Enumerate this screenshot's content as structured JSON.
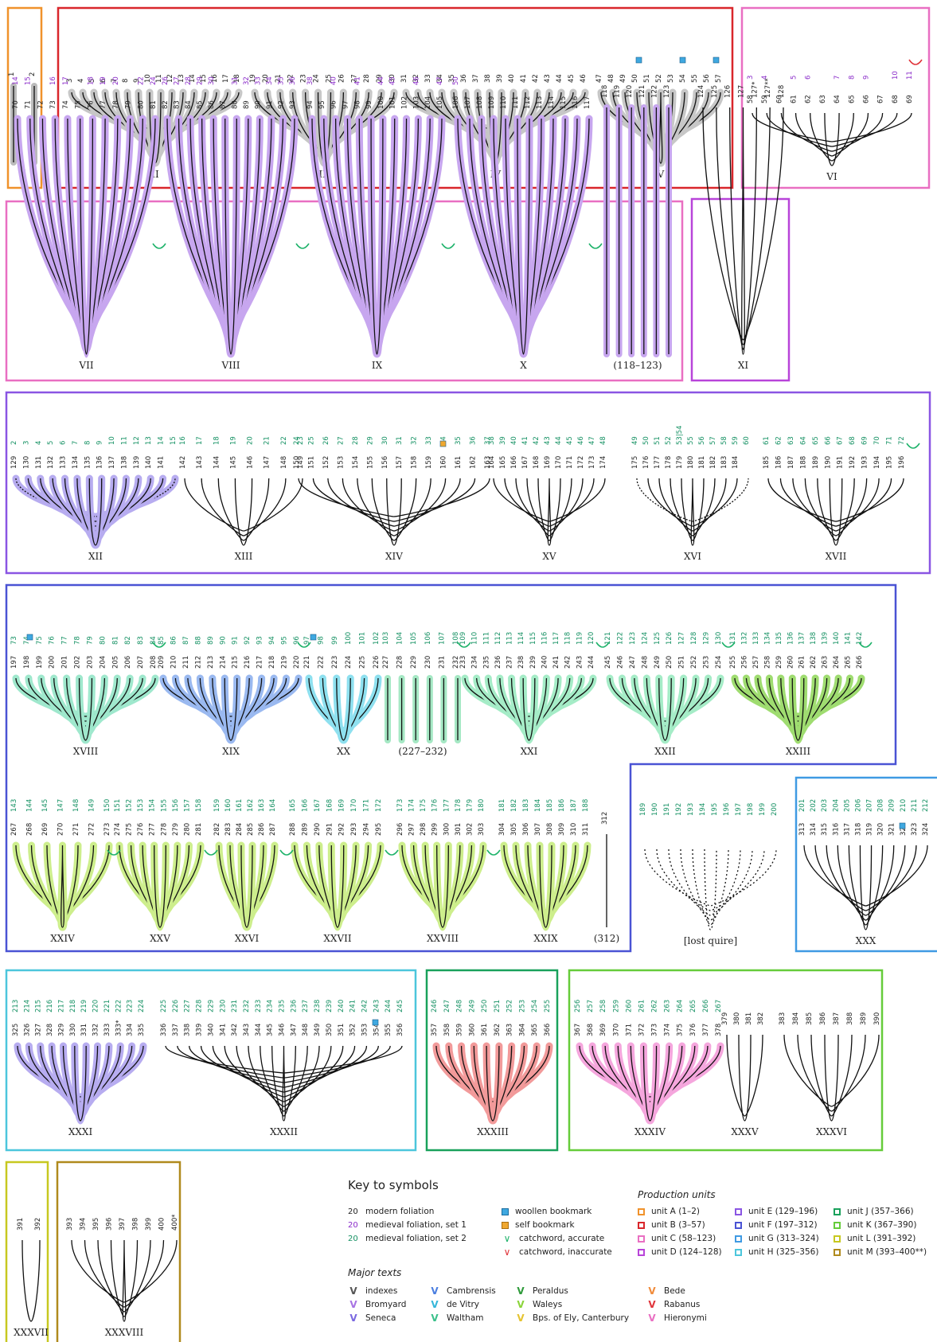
{
  "quires": [
    {
      "label": "I",
      "leaves": [
        "1",
        "2"
      ],
      "box": "A"
    },
    {
      "label": "II",
      "leaves": [
        "3",
        "4",
        "5",
        "6",
        "7",
        "8",
        "9",
        "10",
        "11",
        "12",
        "13",
        "14",
        "15",
        "16",
        "17",
        "18"
      ],
      "box": "B"
    },
    {
      "label": "III",
      "leaves": [
        "19",
        "20",
        "21",
        "22",
        "23",
        "24",
        "25",
        "26",
        "27",
        "28",
        "29",
        "30"
      ],
      "box": "B"
    },
    {
      "label": "IV",
      "leaves": [
        "31",
        "32",
        "33",
        "34",
        "35",
        "36",
        "37",
        "38",
        "39",
        "40",
        "41",
        "42",
        "43",
        "44",
        "45",
        "46"
      ],
      "box": "B"
    },
    {
      "label": "V",
      "leaves": [
        "47",
        "48",
        "49",
        "50",
        "51",
        "52",
        "53",
        "54",
        "55",
        "56",
        "57"
      ],
      "box": "B"
    },
    {
      "label": "VI",
      "leaves": [
        "58",
        "59",
        "60",
        "61",
        "62",
        "63",
        "64",
        "65",
        "66",
        "67",
        "68",
        "69"
      ],
      "medieval1": [
        "3",
        "4",
        "5",
        "6",
        "7",
        "8",
        "9",
        "10",
        "11"
      ],
      "box": "C"
    },
    {
      "label": "VII",
      "leaves": [
        "70",
        "71",
        "72",
        "73",
        "74",
        "75",
        "76",
        "77",
        "78",
        "79",
        "80",
        "81"
      ],
      "medieval1": [
        "14",
        "15",
        "16",
        "17",
        "18",
        "19",
        "20",
        "22",
        "24"
      ],
      "box": "C"
    },
    {
      "label": "VIII",
      "leaves": [
        "82",
        "83",
        "84",
        "85",
        "86",
        "87",
        "88",
        "89",
        "90",
        "91",
        "92",
        "93"
      ],
      "medieval1": [
        "26",
        "27",
        "28",
        "29",
        "30",
        "31",
        "32",
        "33",
        "34",
        "35",
        "36"
      ],
      "box": "C"
    },
    {
      "label": "IX",
      "leaves": [
        "94",
        "95",
        "96",
        "97",
        "98",
        "99",
        "100",
        "101",
        "102",
        "103",
        "104",
        "105"
      ],
      "medieval1": [
        "38",
        "40",
        "41",
        "44",
        "45",
        "46",
        "47"
      ],
      "box": "C"
    },
    {
      "label": "X",
      "leaves": [
        "106",
        "107",
        "108",
        "109",
        "110",
        "111",
        "112",
        "113",
        "114",
        "115",
        "116",
        "117"
      ],
      "medieval1": [
        "50"
      ],
      "box": "C"
    },
    {
      "label": "(118–123)",
      "leaves": [
        "118",
        "119",
        "120",
        "121",
        "122",
        "123"
      ],
      "box": "C"
    },
    {
      "label": "XI",
      "leaves": [
        "124",
        "125",
        "126",
        "127",
        "127*",
        "127**",
        "128"
      ],
      "box": "D"
    },
    {
      "label": "XII",
      "leaves": [
        "129",
        "130",
        "131",
        "132",
        "133",
        "134",
        "135",
        "136",
        "137",
        "138",
        "139",
        "140",
        "141"
      ],
      "medieval2": [
        "2",
        "3",
        "4",
        "5",
        "6",
        "7",
        "8",
        "9",
        "10",
        "11",
        "12",
        "13",
        "14",
        "15"
      ],
      "box": "E"
    },
    {
      "label": "XIII",
      "leaves": [
        "142",
        "143",
        "144",
        "145",
        "146",
        "147",
        "148",
        "149"
      ],
      "medieval2": [
        "16",
        "17",
        "18",
        "19",
        "20",
        "21",
        "22",
        "23"
      ],
      "box": "E"
    },
    {
      "label": "XIV",
      "leaves": [
        "150",
        "151",
        "152",
        "153",
        "154",
        "155",
        "156",
        "157",
        "158",
        "159",
        "160",
        "161",
        "162",
        "163"
      ],
      "medieval2": [
        "24",
        "25",
        "26",
        "27",
        "28",
        "29",
        "30",
        "31",
        "32",
        "33",
        "34",
        "35",
        "36",
        "37"
      ],
      "box": "E"
    },
    {
      "label": "XV",
      "leaves": [
        "164",
        "165",
        "166",
        "167",
        "168",
        "169",
        "170",
        "171",
        "172",
        "173",
        "174"
      ],
      "medieval2": [
        "38",
        "39",
        "40",
        "41",
        "42",
        "43",
        "44",
        "45",
        "46",
        "47",
        "48"
      ],
      "box": "E"
    },
    {
      "label": "XVI",
      "leaves": [
        "175",
        "176",
        "177",
        "178",
        "179",
        "180",
        "181",
        "182",
        "183",
        "184"
      ],
      "medieval2": [
        "49",
        "50",
        "51",
        "52",
        "53|54",
        "55",
        "56",
        "57",
        "58",
        "59",
        "60"
      ],
      "box": "E"
    },
    {
      "label": "XVII",
      "leaves": [
        "185",
        "186",
        "187",
        "188",
        "189",
        "190",
        "191",
        "192",
        "193",
        "194",
        "195",
        "196"
      ],
      "medieval2": [
        "61",
        "62",
        "63",
        "64",
        "65",
        "66",
        "67",
        "68",
        "69",
        "70",
        "71",
        "72"
      ],
      "box": "E"
    },
    {
      "label": "XVIII",
      "leaves": [
        "197",
        "198",
        "199",
        "200",
        "201",
        "202",
        "203",
        "204",
        "205",
        "206",
        "207",
        "208"
      ],
      "medieval2": [
        "73",
        "74",
        "75",
        "76",
        "77",
        "78",
        "79",
        "80",
        "81",
        "82",
        "83",
        "84"
      ],
      "box": "F"
    },
    {
      "label": "XIX",
      "leaves": [
        "209",
        "210",
        "211",
        "212",
        "213",
        "214",
        "215",
        "216",
        "217",
        "218",
        "219",
        "220"
      ],
      "medieval2": [
        "85",
        "86",
        "87",
        "88",
        "89",
        "90",
        "91",
        "92",
        "93",
        "94",
        "95",
        "96"
      ],
      "box": "F"
    },
    {
      "label": "XX",
      "leaves": [
        "221",
        "222",
        "223",
        "224",
        "225",
        "226"
      ],
      "medieval2": [
        "97",
        "98",
        "99",
        "100",
        "101",
        "102"
      ],
      "box": "F"
    },
    {
      "label": "(227–232)",
      "leaves": [
        "227",
        "228",
        "229",
        "230",
        "231",
        "232"
      ],
      "medieval2": [
        "103",
        "104",
        "105",
        "106",
        "107",
        "108"
      ],
      "box": "F"
    },
    {
      "label": "XXI",
      "leaves": [
        "233",
        "234",
        "235",
        "236",
        "237",
        "238",
        "239",
        "240",
        "241",
        "242",
        "243",
        "244"
      ],
      "medieval2": [
        "109",
        "110",
        "111",
        "112",
        "113",
        "114",
        "115",
        "116",
        "117",
        "118",
        "119",
        "120"
      ],
      "box": "F"
    },
    {
      "label": "XXII",
      "leaves": [
        "245",
        "246",
        "247",
        "248",
        "249",
        "250",
        "251",
        "252",
        "253",
        "254"
      ],
      "medieval2": [
        "121",
        "122",
        "123",
        "124",
        "125",
        "126",
        "127",
        "128",
        "129",
        "130"
      ],
      "box": "F"
    },
    {
      "label": "XXIII",
      "leaves": [
        "255",
        "256",
        "257",
        "258",
        "259",
        "260",
        "261",
        "262",
        "263",
        "264",
        "265",
        "266"
      ],
      "medieval2": [
        "131",
        "132",
        "133",
        "134",
        "135",
        "136",
        "137",
        "138",
        "139",
        "140",
        "141",
        "142"
      ],
      "box": "F"
    },
    {
      "label": "XXIV",
      "leaves": [
        "267",
        "268",
        "269",
        "270",
        "271",
        "272",
        "273"
      ],
      "medieval2": [
        "143",
        "144",
        "145",
        "147",
        "148",
        "149",
        "150"
      ],
      "box": "F"
    },
    {
      "label": "XXV",
      "leaves": [
        "274",
        "275",
        "276",
        "277",
        "278",
        "279",
        "280",
        "281"
      ],
      "medieval2": [
        "151",
        "152",
        "153",
        "154",
        "155",
        "156",
        "157",
        "158"
      ],
      "box": "F"
    },
    {
      "label": "XXVI",
      "leaves": [
        "282",
        "283",
        "284",
        "285",
        "286",
        "287"
      ],
      "medieval2": [
        "159",
        "160",
        "161",
        "162",
        "163",
        "164"
      ],
      "box": "F"
    },
    {
      "label": "XXVII",
      "leaves": [
        "288",
        "289",
        "290",
        "291",
        "292",
        "293",
        "294",
        "295"
      ],
      "medieval2": [
        "165",
        "166",
        "167",
        "168",
        "169",
        "170",
        "171",
        "172"
      ],
      "box": "F"
    },
    {
      "label": "XXVIII",
      "leaves": [
        "296",
        "297",
        "298",
        "299",
        "300",
        "301",
        "302",
        "303"
      ],
      "medieval2": [
        "173",
        "174",
        "175",
        "176",
        "177",
        "178",
        "179",
        "180"
      ],
      "box": "F"
    },
    {
      "label": "XXIX",
      "leaves": [
        "304",
        "305",
        "306",
        "307",
        "308",
        "309",
        "310",
        "311"
      ],
      "medieval2": [
        "181",
        "182",
        "183",
        "184",
        "185",
        "186",
        "187",
        "188"
      ],
      "box": "F"
    },
    {
      "label": "(312)",
      "leaves": [
        "312"
      ],
      "box": "F"
    },
    {
      "label": "[lost quire]",
      "leaves": [],
      "medieval2": [
        "189",
        "190",
        "191",
        "192",
        "193",
        "194",
        "195",
        "196",
        "197",
        "198",
        "199",
        "200"
      ],
      "box": "none"
    },
    {
      "label": "XXX",
      "leaves": [
        "313",
        "314",
        "315",
        "316",
        "317",
        "318",
        "319",
        "320",
        "321",
        "322",
        "323",
        "324"
      ],
      "medieval2": [
        "201",
        "202",
        "203",
        "204",
        "205",
        "206",
        "207",
        "208",
        "209",
        "210",
        "211",
        "212"
      ],
      "box": "G"
    },
    {
      "label": "XXXI",
      "leaves": [
        "325",
        "326",
        "327",
        "328",
        "329",
        "330",
        "331",
        "332",
        "333",
        "333*",
        "334",
        "335"
      ],
      "medieval2": [
        "213",
        "214",
        "215",
        "216",
        "217",
        "218",
        "219",
        "220",
        "221",
        "222",
        "223",
        "224"
      ],
      "box": "H"
    },
    {
      "label": "XXXII",
      "leaves": [
        "336",
        "337",
        "338",
        "339",
        "340",
        "341",
        "342",
        "343",
        "344",
        "345",
        "346",
        "347",
        "348",
        "349",
        "350",
        "351",
        "352",
        "353",
        "354",
        "355",
        "356"
      ],
      "medieval2": [
        "225",
        "226",
        "227",
        "228",
        "229",
        "230",
        "231",
        "232",
        "233",
        "234",
        "235",
        "236",
        "237",
        "238",
        "239",
        "240",
        "241",
        "242",
        "243",
        "244",
        "245"
      ],
      "box": "H"
    },
    {
      "label": "XXXIII",
      "leaves": [
        "357",
        "358",
        "359",
        "360",
        "361",
        "362",
        "363",
        "364",
        "365",
        "366"
      ],
      "medieval2": [
        "246",
        "247",
        "248",
        "249",
        "250",
        "251",
        "252",
        "253",
        "254",
        "255"
      ],
      "box": "J"
    },
    {
      "label": "XXXIV",
      "leaves": [
        "367",
        "368",
        "369",
        "370",
        "371",
        "372",
        "373",
        "374",
        "375",
        "376",
        "377",
        "378"
      ],
      "medieval2": [
        "256",
        "257",
        "258",
        "259",
        "260",
        "261",
        "262",
        "263",
        "264",
        "265",
        "266",
        "267"
      ],
      "box": "K"
    },
    {
      "label": "XXXV",
      "leaves": [
        "379",
        "380",
        "381",
        "382"
      ],
      "box": "K"
    },
    {
      "label": "XXXVI",
      "leaves": [
        "383",
        "384",
        "385",
        "386",
        "387",
        "388",
        "389",
        "390"
      ],
      "box": "K"
    },
    {
      "label": "XXXVII",
      "leaves": [
        "391",
        "392"
      ],
      "box": "L"
    },
    {
      "label": "XXXVIII",
      "leaves": [
        "393",
        "394",
        "395",
        "396",
        "397",
        "398",
        "399",
        "400",
        "400*"
      ],
      "box": "M"
    }
  ],
  "units": [
    {
      "id": "A",
      "label": "unit A (1–2)",
      "color": "#f0922b"
    },
    {
      "id": "B",
      "label": "unit B (3–57)",
      "color": "#d9262b"
    },
    {
      "id": "C",
      "label": "unit C (58–123)",
      "color": "#e96fc2"
    },
    {
      "id": "D",
      "label": "unit D (124–128)",
      "color": "#b844d9"
    },
    {
      "id": "E",
      "label": "unit E (129–196)",
      "color": "#8a55e3"
    },
    {
      "id": "F",
      "label": "unit F (197–312)",
      "color": "#4a53d4"
    },
    {
      "id": "G",
      "label": "unit G (313–324)",
      "color": "#3f9ae3"
    },
    {
      "id": "H",
      "label": "unit H (325–356)",
      "color": "#4cc6dc"
    },
    {
      "id": "J",
      "label": "unit J (357–366)",
      "color": "#19a15b"
    },
    {
      "id": "K",
      "label": "unit K (367–390)",
      "color": "#66cc3a"
    },
    {
      "id": "L",
      "label": "unit L (391–392)",
      "color": "#c7c820"
    },
    {
      "id": "M",
      "label": "unit M (393–400**)",
      "color": "#b08a1d"
    }
  ],
  "key": {
    "title": "Key to symbols",
    "foliation": [
      {
        "num": "20",
        "label": "modern foliation",
        "color": "#222222"
      },
      {
        "num": "20",
        "label": "medieval foliation, set 1",
        "color": "#8a2bc9"
      },
      {
        "num": "20",
        "label": "medieval foliation, set 2",
        "color": "#159163"
      }
    ],
    "markers": [
      {
        "label": "woollen bookmark",
        "color": "#3fa8e0",
        "kind": "square"
      },
      {
        "label": "self bookmark",
        "color": "#f0a830",
        "kind": "square"
      },
      {
        "label": "catchword, accurate",
        "color": "#1fb36b",
        "kind": "check"
      },
      {
        "label": "catchword, inaccurate",
        "color": "#e0353b",
        "kind": "check"
      }
    ],
    "production_units_heading": "Production units",
    "major_texts_heading": "Major texts",
    "texts": [
      {
        "label": "indexes",
        "color": "#555555"
      },
      {
        "label": "Bromyard",
        "color": "#a773e3"
      },
      {
        "label": "Seneca",
        "color": "#7a68e0"
      },
      {
        "label": "Cambrensis",
        "color": "#4a7ee0"
      },
      {
        "label": "de Vitry",
        "color": "#35b6d9"
      },
      {
        "label": "Waltham",
        "color": "#3ac08a"
      },
      {
        "label": "Peraldus",
        "color": "#2e9a3a"
      },
      {
        "label": "Waleys",
        "color": "#8bd43a"
      },
      {
        "label": "Bps. of Ely, Canterbury",
        "color": "#e5c330"
      },
      {
        "label": "Bede",
        "color": "#f08a3a"
      },
      {
        "label": "Rabanus",
        "color": "#e0353b"
      },
      {
        "label": "Hieronymi",
        "color": "#e96fc2"
      }
    ]
  }
}
